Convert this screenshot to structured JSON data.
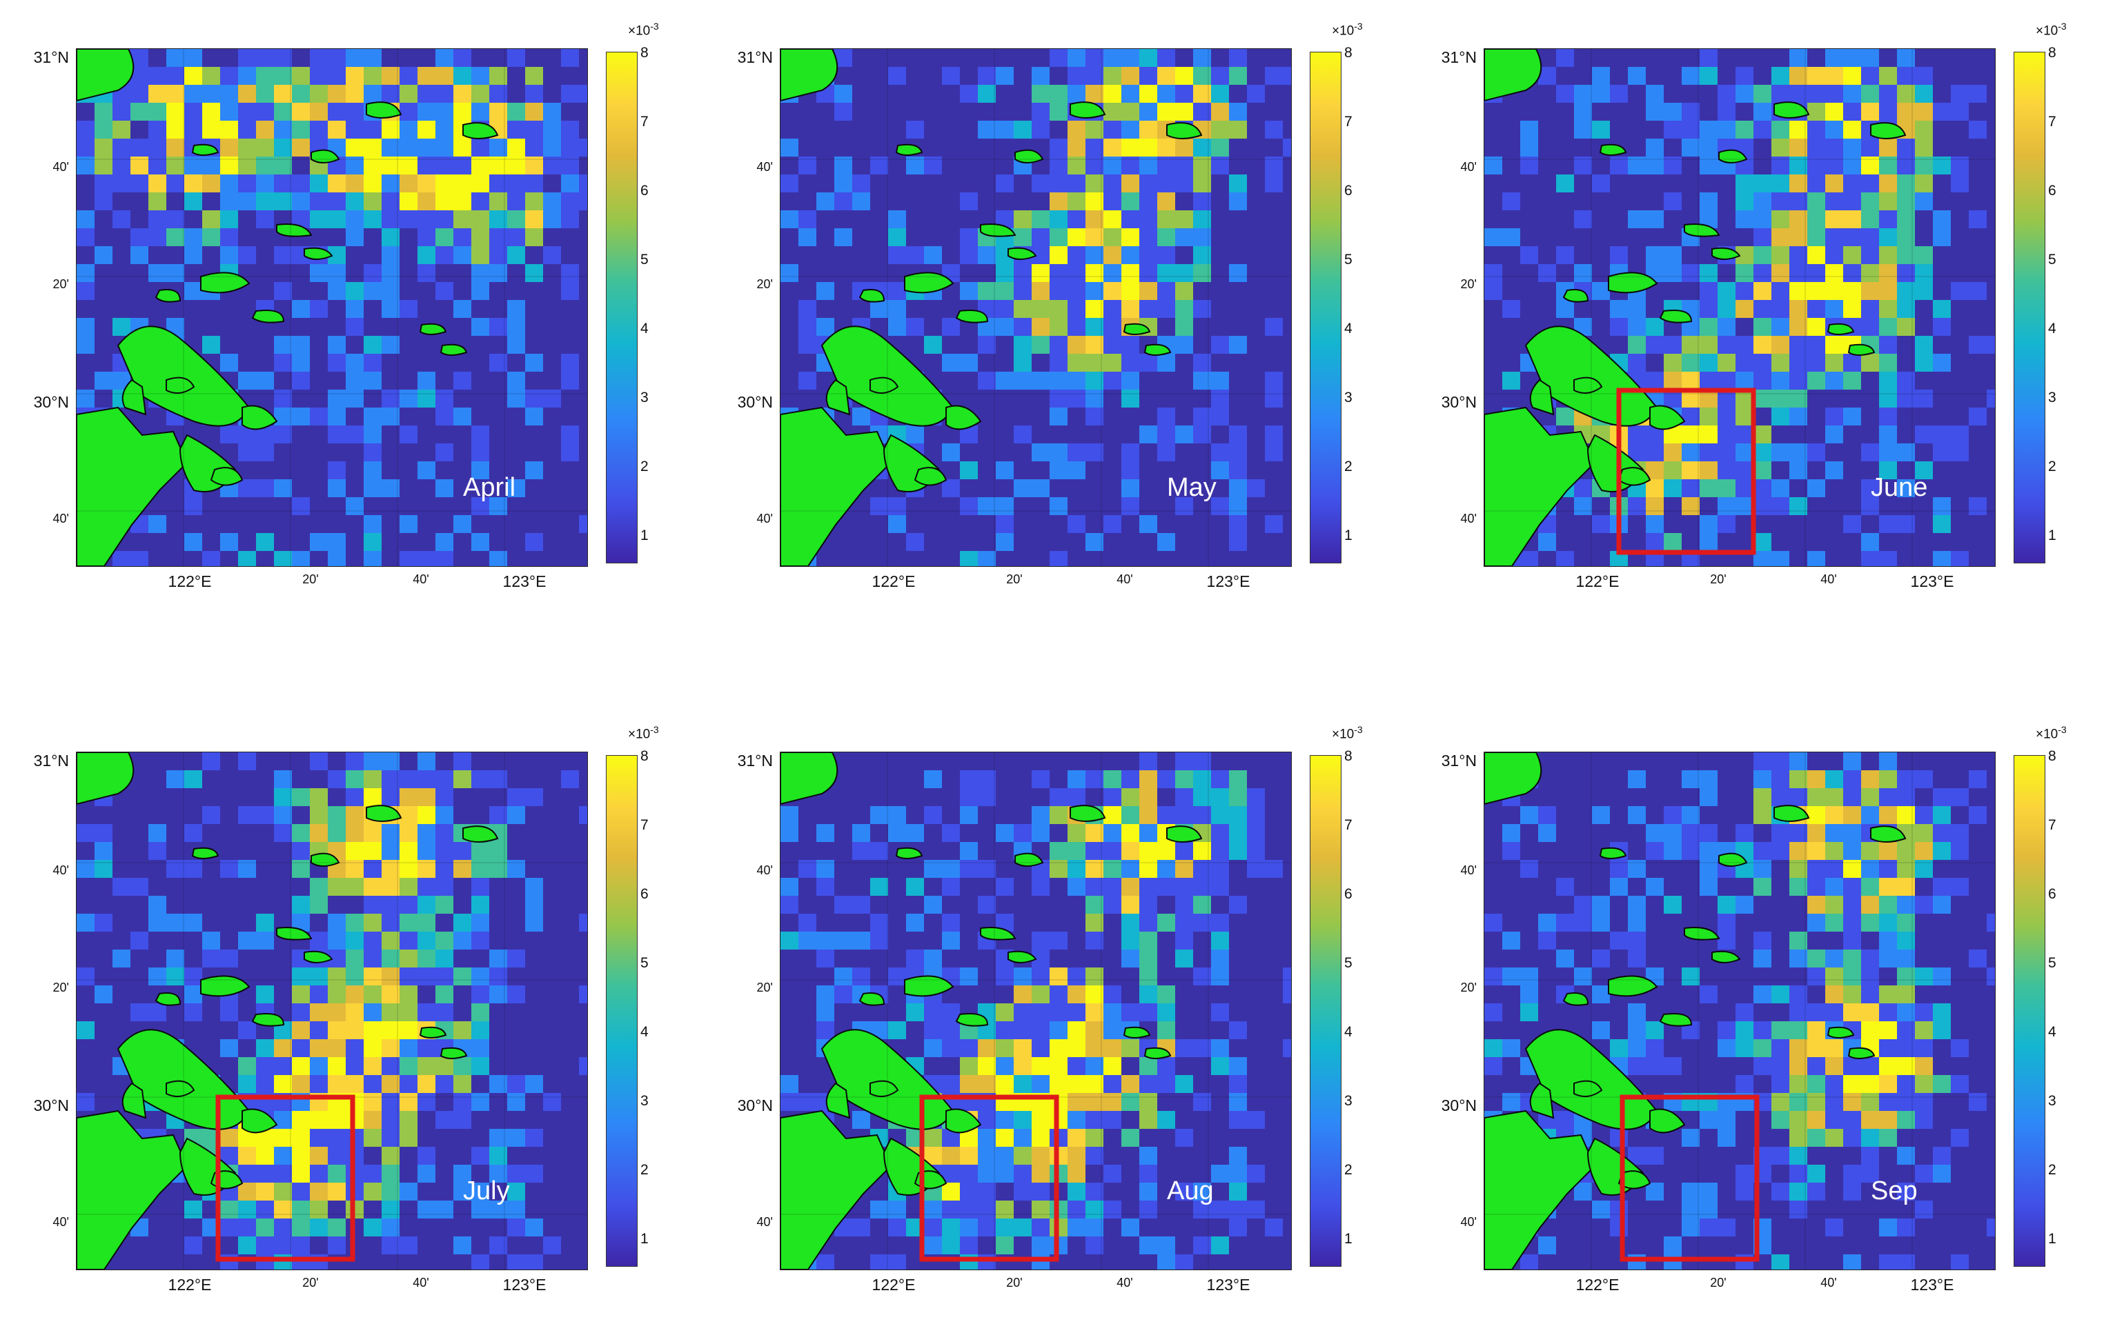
{
  "colorbar": {
    "ticks": [
      "8",
      "7",
      "6",
      "5",
      "4",
      "3",
      "2",
      "1"
    ],
    "exponent_base": "×10",
    "exponent_power": "-3",
    "colors": [
      "#3e26a8",
      "#4150e8",
      "#2e87f7",
      "#14b5d0",
      "#3fc19a",
      "#98c64a",
      "#e3ba3a",
      "#fbd43a",
      "#f9fb14"
    ]
  },
  "axes": {
    "y_labels": [
      {
        "text": "31°N",
        "major": true
      },
      {
        "text": "40'",
        "major": false
      },
      {
        "text": "20'",
        "major": false
      },
      {
        "text": "30°N",
        "major": true
      },
      {
        "text": "40'",
        "major": false
      }
    ],
    "x_labels": [
      {
        "text": "122°E",
        "major": true
      },
      {
        "text": "20'",
        "major": false
      },
      {
        "text": "40'",
        "major": false
      },
      {
        "text": "123°E",
        "major": true
      }
    ]
  },
  "colors": {
    "land": "#1fe61f",
    "ocean": "#3b31a6",
    "highlight_box": "#e01a1a"
  },
  "panels": [
    {
      "month": "April",
      "has_box": false
    },
    {
      "month": "May",
      "has_box": false
    },
    {
      "month": "June",
      "has_box": true
    },
    {
      "month": "July",
      "has_box": true
    },
    {
      "month": "Aug",
      "has_box": true
    },
    {
      "month": "Sep",
      "has_box": true
    }
  ]
}
